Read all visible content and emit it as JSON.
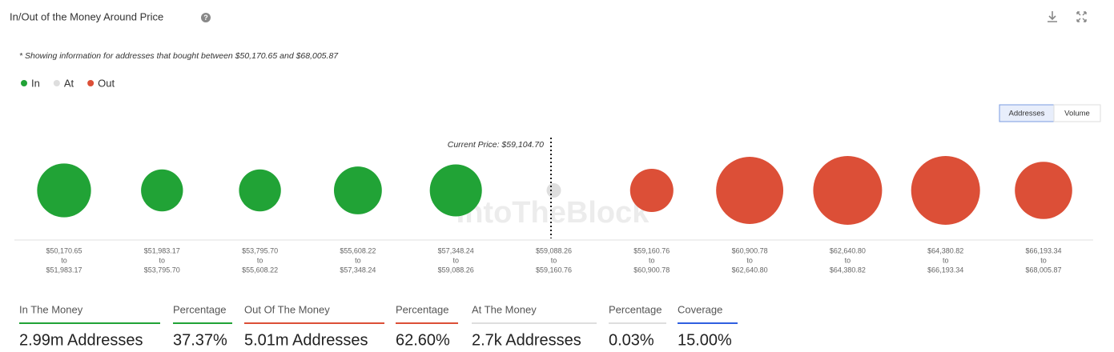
{
  "header": {
    "title": "In/Out of the Money Around Price",
    "note": "* Showing information for addresses that bought between $50,170.65 and $68,005.87",
    "buttons": [
      "Addresses",
      "Volume"
    ]
  },
  "chart_data": {
    "type": "bubble",
    "current_price_label": "Current Price: $59,104.70",
    "watermark": "IntoTheBlock",
    "categories": [
      {
        "low": "$50,170.65",
        "sep": "to",
        "high": "$51,983.17"
      },
      {
        "low": "$51,983.17",
        "sep": "to",
        "high": "$53,795.70"
      },
      {
        "low": "$53,795.70",
        "sep": "to",
        "high": "$55,608.22"
      },
      {
        "low": "$55,608.22",
        "sep": "to",
        "high": "$57,348.24"
      },
      {
        "low": "$57,348.24",
        "sep": "to",
        "high": "$59,088.26"
      },
      {
        "low": "$59,088.26",
        "sep": "to",
        "high": "$59,160.76"
      },
      {
        "low": "$59,160.76",
        "sep": "to",
        "high": "$60,900.78"
      },
      {
        "low": "$60,900.78",
        "sep": "to",
        "high": "$62,640.80"
      },
      {
        "low": "$62,640.80",
        "sep": "to",
        "high": "$64,380.82"
      },
      {
        "low": "$64,380.82",
        "sep": "to",
        "high": "$66,193.34"
      },
      {
        "low": "$66,193.34",
        "sep": "to",
        "high": "$68,005.87"
      }
    ],
    "series": [
      {
        "name": "In",
        "color": "#21a336",
        "values": [
          760000,
          460000,
          460000,
          600000,
          710000,
          null,
          null,
          null,
          null,
          null,
          null
        ]
      },
      {
        "name": "At",
        "color": "#dedede",
        "values": [
          null,
          null,
          null,
          null,
          null,
          2700,
          null,
          null,
          null,
          null,
          null
        ]
      },
      {
        "name": "Out",
        "color": "#dc4f37",
        "values": [
          null,
          null,
          null,
          null,
          null,
          null,
          490000,
          1180000,
          1240000,
          1240000,
          860000
        ]
      }
    ]
  },
  "summary": [
    {
      "label": "In The Money",
      "value": "2.99m Addresses",
      "color": "#21a336"
    },
    {
      "label": "Percentage",
      "value": "37.37%",
      "color": "#21a336"
    },
    {
      "label": "Out Of The Money",
      "value": "5.01m Addresses",
      "color": "#dc4f37"
    },
    {
      "label": "Percentage",
      "value": "62.60%",
      "color": "#dc4f37"
    },
    {
      "label": "At The Money",
      "value": "2.7k Addresses",
      "color": "#dedede"
    },
    {
      "label": "Percentage",
      "value": "0.03%",
      "color": "#dedede"
    },
    {
      "label": "Coverage",
      "value": "15.00%",
      "color": "#2f5fe0"
    }
  ]
}
